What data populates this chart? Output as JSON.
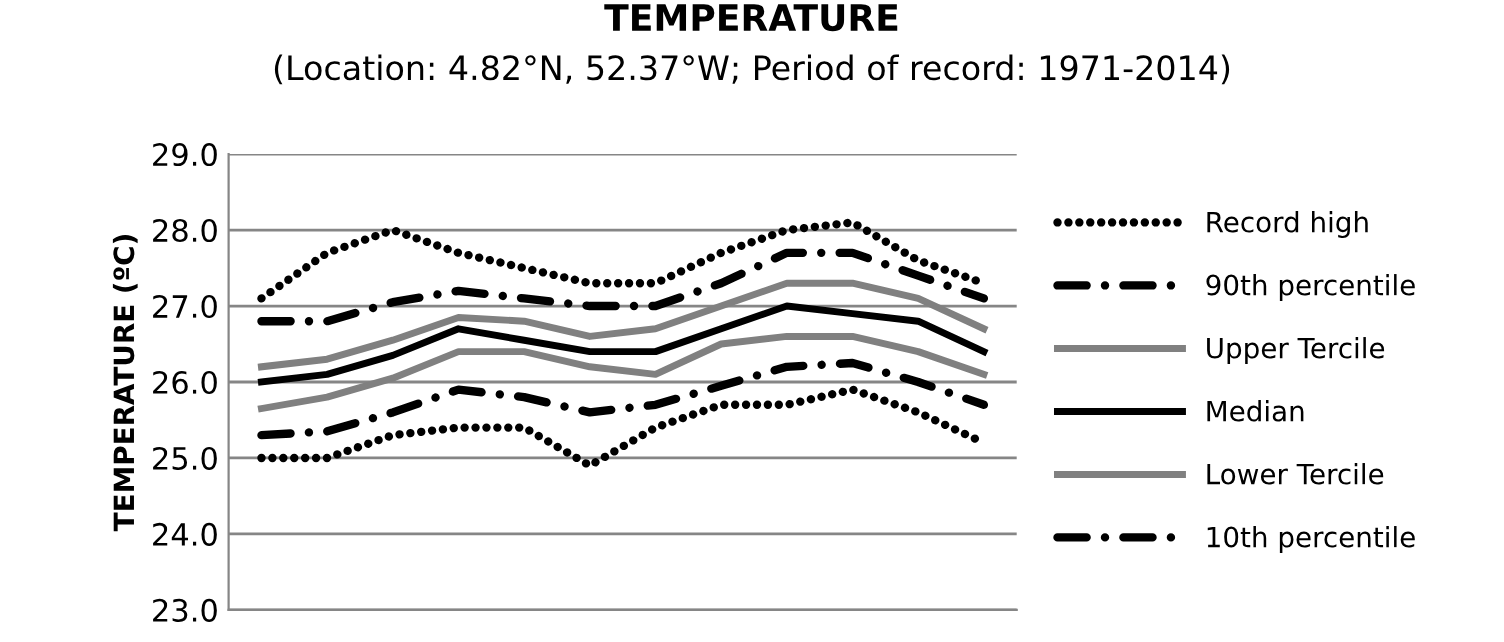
{
  "chart_data": {
    "type": "line",
    "title": "TEMPERATURE",
    "subtitle": "(Location: 4.82°N, 52.37°W; Period of record: 1971-2014)",
    "ylabel": "TEMPERATURE (ºC)",
    "categories": [
      null,
      null,
      null,
      null,
      null,
      null,
      null,
      null,
      null,
      null,
      null,
      null
    ],
    "series": [
      {
        "name": "Record high",
        "color": "#000000",
        "line_style": "dotted",
        "values": [
          27.1,
          27.7,
          28.0,
          27.7,
          27.5,
          27.3,
          27.3,
          27.7,
          28.0,
          28.1,
          27.6,
          27.3
        ]
      },
      {
        "name": "90th percentile",
        "color": "#000000",
        "line_style": "dashdot",
        "values": [
          26.8,
          26.8,
          27.05,
          27.2,
          27.1,
          27.0,
          27.0,
          27.3,
          27.7,
          27.7,
          27.4,
          27.1
        ]
      },
      {
        "name": "Upper Tercile",
        "color": "#808080",
        "line_style": "solid",
        "values": [
          26.2,
          26.3,
          26.55,
          26.85,
          26.8,
          26.6,
          26.7,
          27.0,
          27.3,
          27.3,
          27.1,
          26.7
        ]
      },
      {
        "name": "Median",
        "color": "#000000",
        "line_style": "solid",
        "values": [
          26.0,
          26.1,
          26.35,
          26.7,
          26.55,
          26.4,
          26.4,
          26.7,
          27.0,
          26.9,
          26.8,
          26.4
        ]
      },
      {
        "name": "Lower Tercile",
        "color": "#808080",
        "line_style": "solid",
        "values": [
          25.65,
          25.8,
          26.05,
          26.4,
          26.4,
          26.2,
          26.1,
          26.5,
          26.6,
          26.6,
          26.4,
          26.1
        ]
      },
      {
        "name": "10th percentile",
        "color": "#000000",
        "line_style": "dashdot",
        "values": [
          25.3,
          25.35,
          25.6,
          25.9,
          25.8,
          25.6,
          25.7,
          25.95,
          26.2,
          26.25,
          26.0,
          25.7
        ]
      },
      {
        "color": "#000000",
        "line_style": "dotted",
        "values": [
          25.0,
          25.0,
          25.3,
          25.4,
          25.4,
          24.9,
          25.4,
          25.7,
          25.7,
          25.9,
          25.6,
          25.2
        ]
      }
    ],
    "ylim": [
      23,
      29
    ],
    "yticks": [
      {
        "value": 23,
        "label": "23.0"
      },
      {
        "value": 24,
        "label": "24.0"
      },
      {
        "value": 25,
        "label": "25.0"
      },
      {
        "value": 26,
        "label": "26.0"
      },
      {
        "value": 27,
        "label": "27.0"
      },
      {
        "value": 28,
        "label": "28.0"
      },
      {
        "value": 29,
        "label": "29.0"
      }
    ],
    "grid": "y",
    "legend": "right",
    "tick_labels": "y"
  }
}
